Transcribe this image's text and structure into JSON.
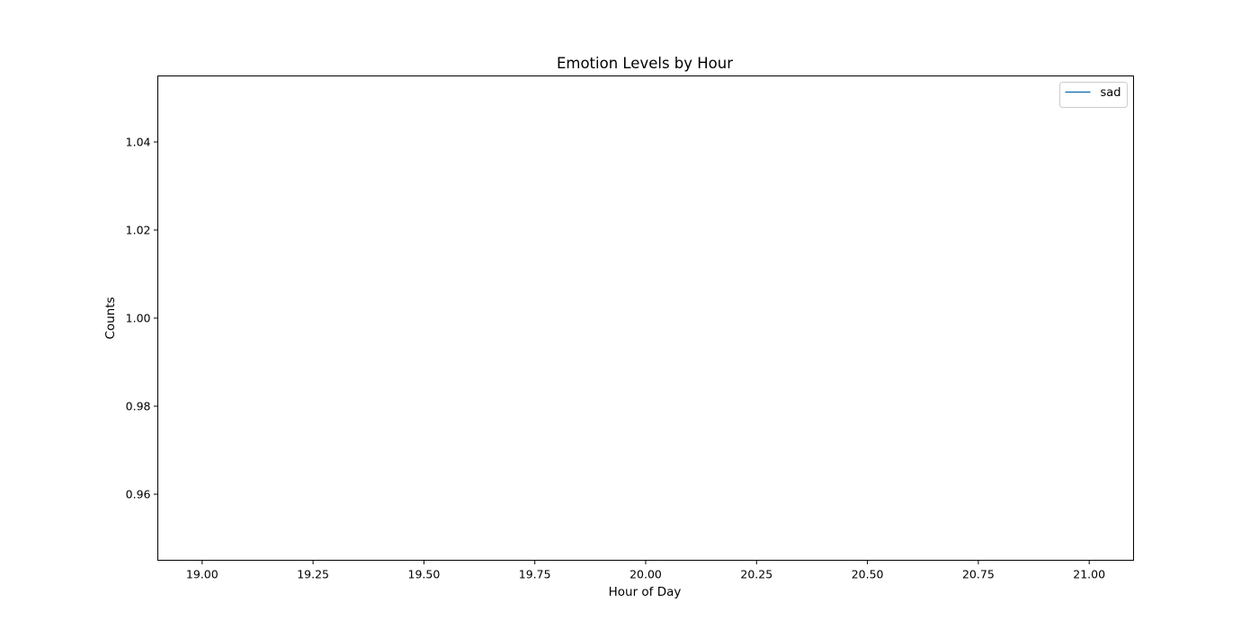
{
  "chart_data": {
    "type": "line",
    "title": "Emotion Levels by Hour",
    "xlabel": "Hour of Day",
    "ylabel": "Counts",
    "xlim": [
      18.9,
      21.1
    ],
    "ylim": [
      0.945,
      1.055
    ],
    "xticks": [
      19.0,
      19.25,
      19.5,
      19.75,
      20.0,
      20.25,
      20.5,
      20.75,
      21.0
    ],
    "xtick_labels": [
      "19.00",
      "19.25",
      "19.50",
      "19.75",
      "20.00",
      "20.25",
      "20.50",
      "20.75",
      "21.00"
    ],
    "yticks": [
      0.96,
      0.98,
      1.0,
      1.02,
      1.04
    ],
    "ytick_labels": [
      "0.96",
      "0.98",
      "1.00",
      "1.02",
      "1.04"
    ],
    "grid": false,
    "legend": "top-right",
    "series": [
      {
        "name": "sad",
        "color": "#1f77b4",
        "x": [],
        "y": []
      }
    ]
  }
}
